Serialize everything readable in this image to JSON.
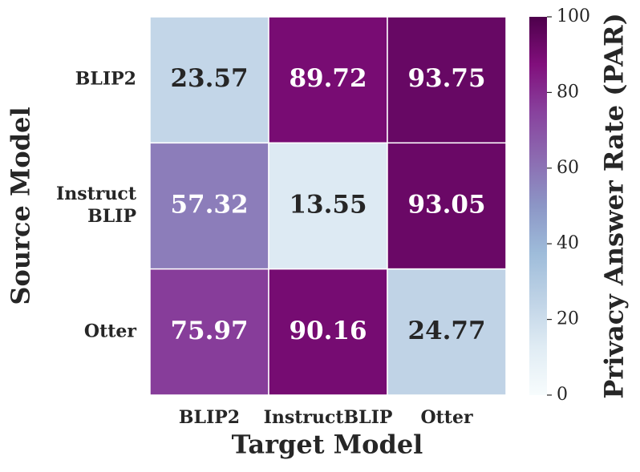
{
  "chart_data": {
    "type": "heatmap",
    "x_label": "Target Model",
    "y_label": "Source Model",
    "x_categories": [
      "BLIP2",
      "InstructBLIP",
      "Otter"
    ],
    "y_categories": [
      "BLIP2",
      [
        "Instruct",
        "BLIP"
      ],
      "Otter"
    ],
    "values": [
      [
        23.57,
        89.72,
        93.75
      ],
      [
        57.32,
        13.55,
        93.05
      ],
      [
        75.97,
        90.16,
        24.77
      ]
    ],
    "colorbar_label": "Privacy Answer Rate (PAR)",
    "clim": [
      0,
      100
    ],
    "cticks": [
      0,
      20,
      40,
      60,
      80,
      100
    ],
    "colormap": [
      "#f7fcfd",
      "#e0ecf4",
      "#bfd3e6",
      "#9ebcda",
      "#8c96c6",
      "#8c6bb1",
      "#88419d",
      "#810f7c",
      "#4d004b"
    ]
  }
}
